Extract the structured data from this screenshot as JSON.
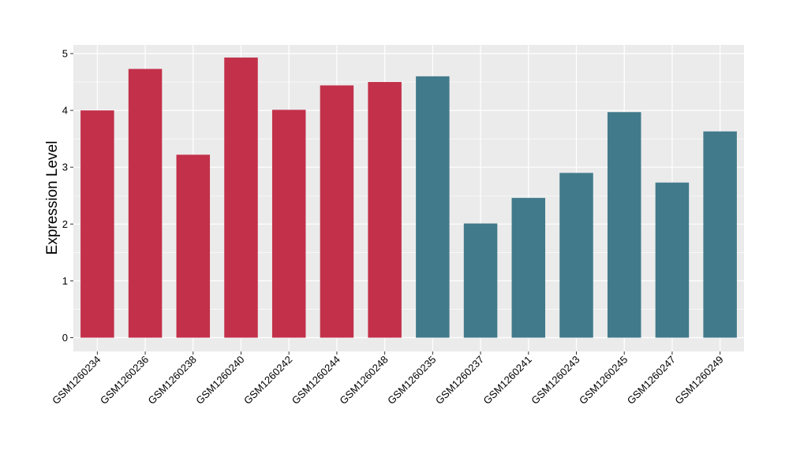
{
  "chart_data": {
    "type": "bar",
    "title": "",
    "xlabel": "",
    "ylabel": "Expression Level",
    "ylim": [
      0,
      5.15
    ],
    "yticks": [
      0,
      1,
      2,
      3,
      4,
      5
    ],
    "grid": true,
    "legend": "none",
    "background_color": "#EBEBEB",
    "gridline_color": "#FFFFFF",
    "categories": [
      "GSM1260234",
      "GSM1260236",
      "GSM1260238",
      "GSM1260240",
      "GSM1260242",
      "GSM1260244",
      "GSM1260248",
      "GSM1260235",
      "GSM1260237",
      "GSM1260241",
      "GSM1260243",
      "GSM1260245",
      "GSM1260247",
      "GSM1260249"
    ],
    "values": [
      4.0,
      4.73,
      3.22,
      4.93,
      4.01,
      4.44,
      4.5,
      4.6,
      2.01,
      2.46,
      2.9,
      3.97,
      2.73,
      3.63
    ],
    "group_colors": [
      "#C3304A",
      "#C3304A",
      "#C3304A",
      "#C3304A",
      "#C3304A",
      "#C3304A",
      "#C3304A",
      "#417A8B",
      "#417A8B",
      "#417A8B",
      "#417A8B",
      "#417A8B",
      "#417A8B",
      "#417A8B"
    ]
  }
}
